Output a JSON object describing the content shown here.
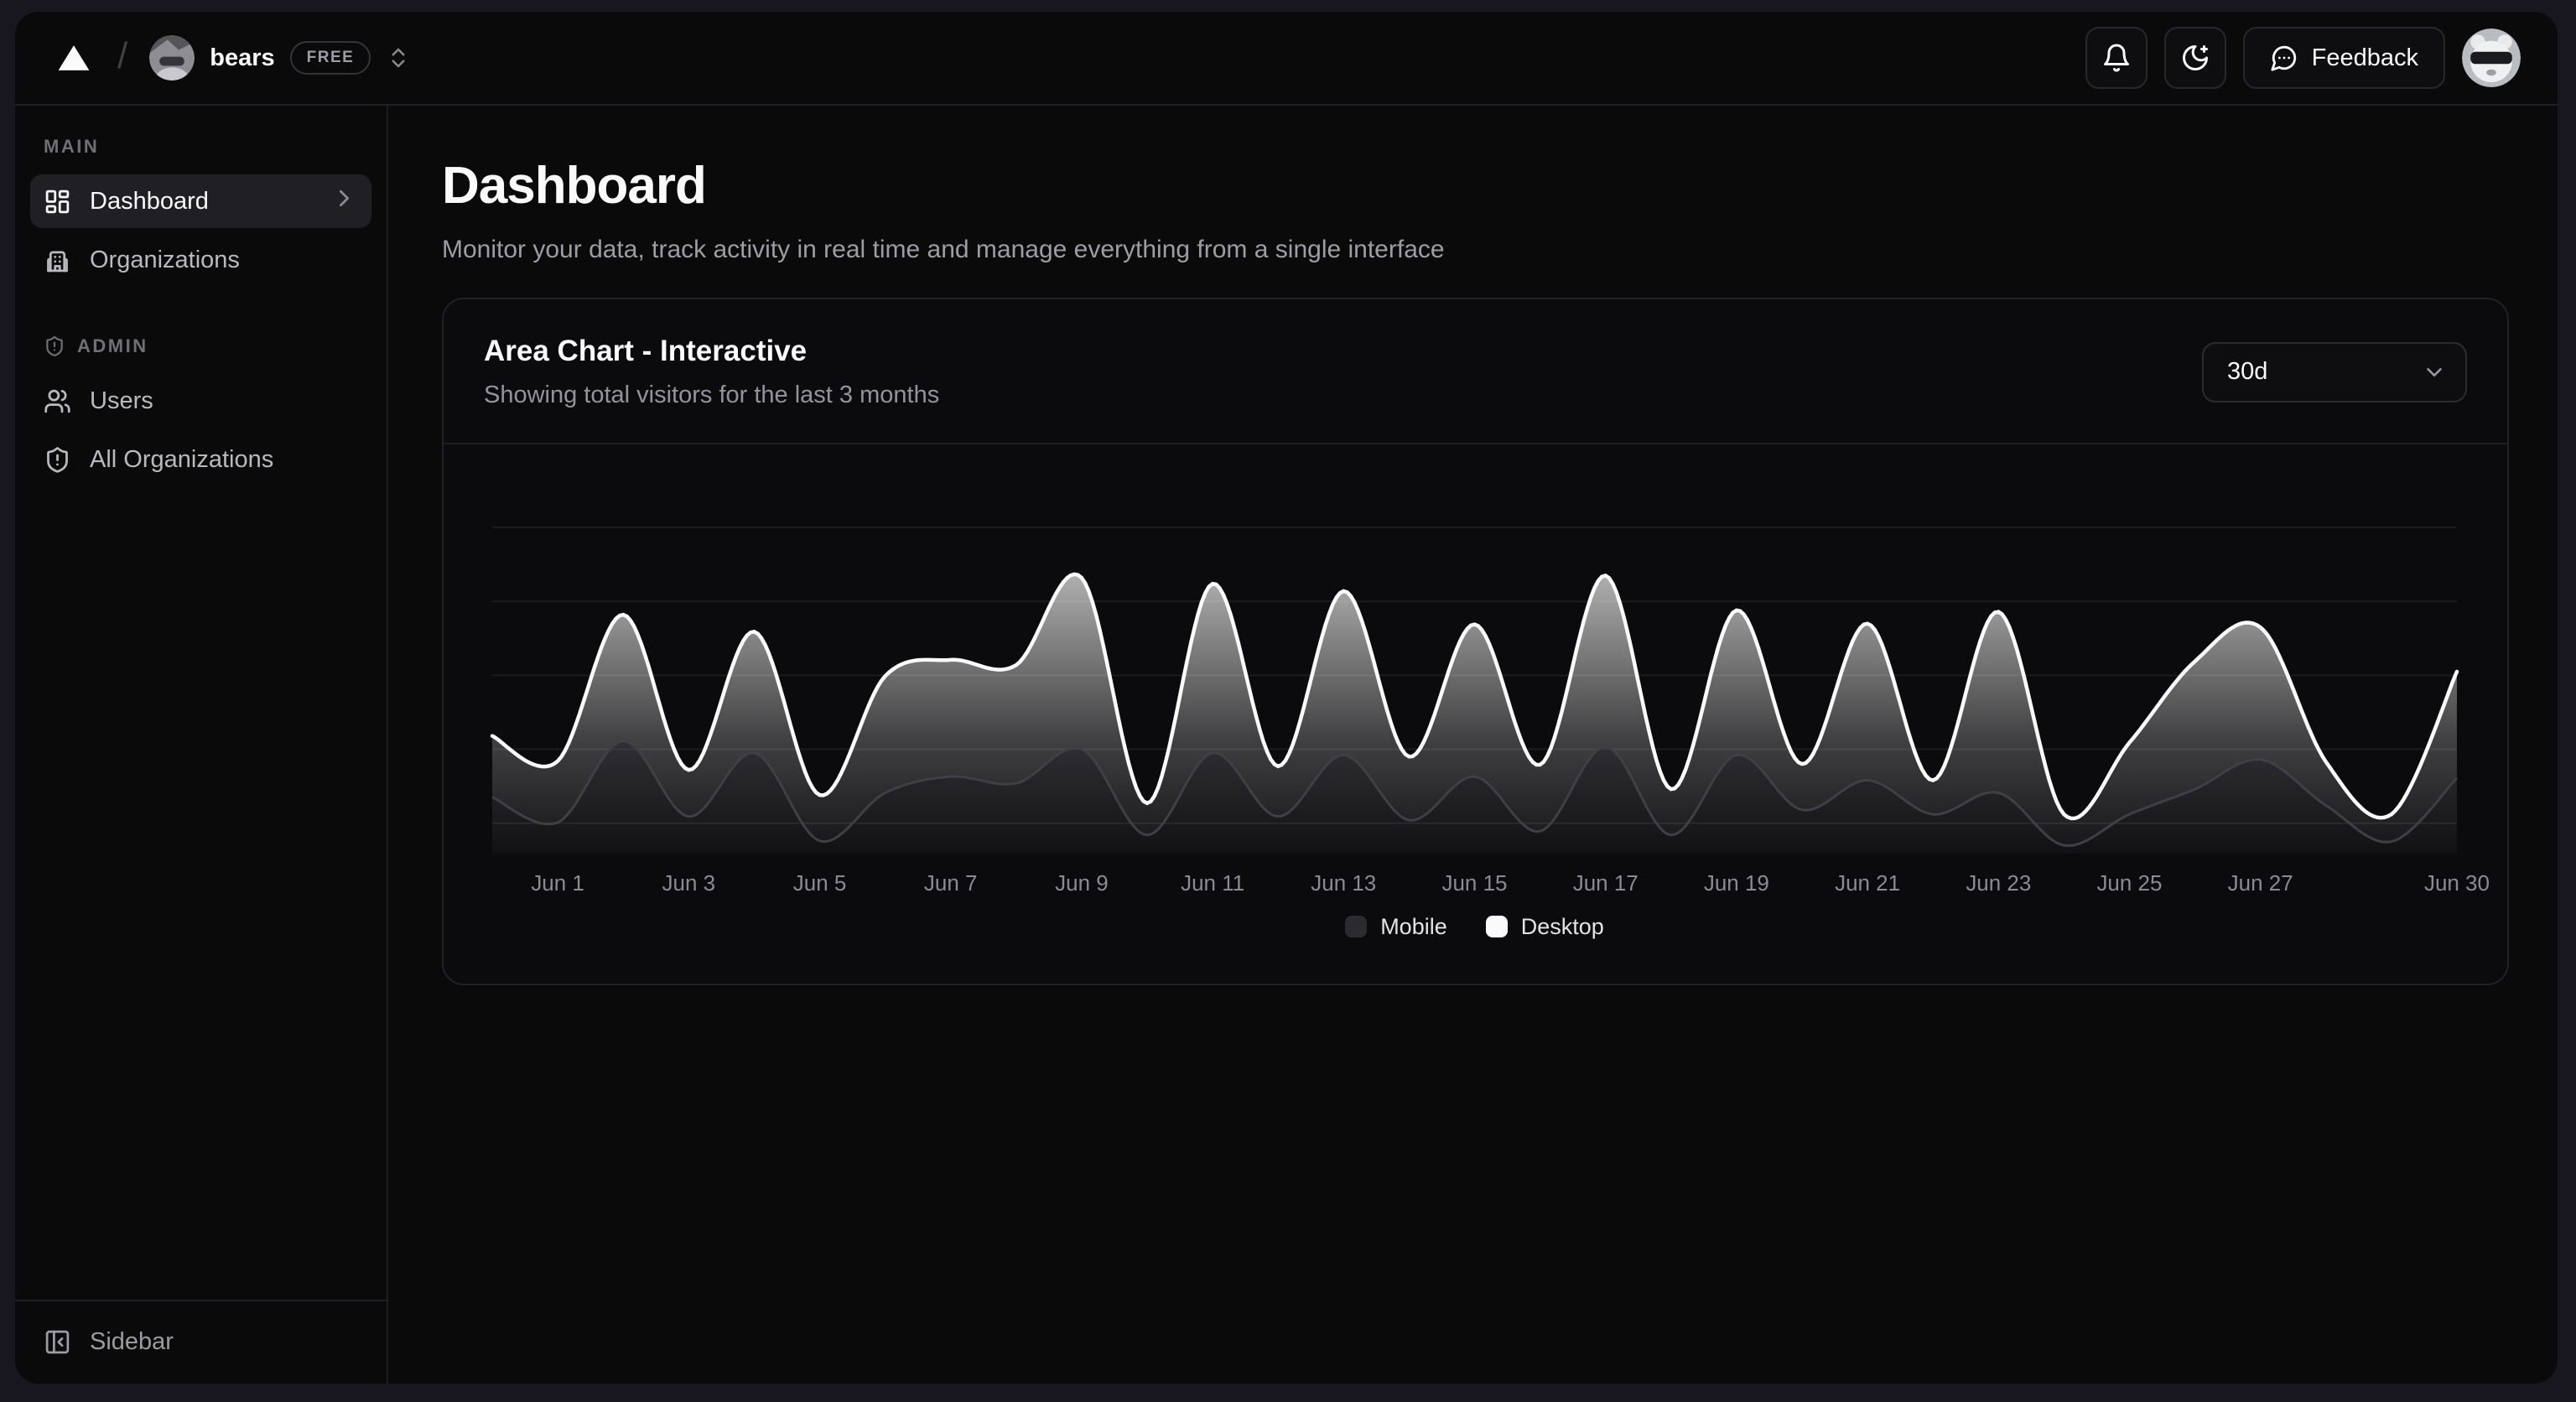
{
  "header": {
    "org_name": "bears",
    "plan_badge": "FREE",
    "feedback_label": "Feedback"
  },
  "sidebar": {
    "sections": [
      {
        "label": "MAIN",
        "items": [
          {
            "label": "Dashboard",
            "active": true
          },
          {
            "label": "Organizations",
            "active": false
          }
        ]
      },
      {
        "label": "ADMIN",
        "items": [
          {
            "label": "Users",
            "active": false
          },
          {
            "label": "All Organizations",
            "active": false
          }
        ]
      }
    ],
    "toggle_label": "Sidebar"
  },
  "page": {
    "title": "Dashboard",
    "subtitle": "Monitor your data, track activity in real time and manage everything from a single interface"
  },
  "card": {
    "title": "Area Chart - Interactive",
    "subtitle": "Showing total visitors for the last 3 months",
    "range_value": "30d"
  },
  "icons": {
    "logo": "vercel-triangle-logo",
    "breadcrumb_separator": "slash",
    "org_switcher": "chevrons-up-down-icon",
    "notifications": "bell-icon",
    "theme": "moon-star-icon",
    "feedback": "message-circle-icon",
    "dashboard": "layout-dashboard-icon",
    "organizations": "building-icon",
    "admin": "shield-alert-icon",
    "users": "users-icon",
    "all_organizations": "shield-alert-icon",
    "sidebar_toggle": "panel-left-close-icon",
    "select": "chevron-down-icon"
  },
  "colors": {
    "background": "#0a0a0a",
    "frame": "#18171f",
    "desktop_series": "#fafafa",
    "mobile_series": "#9ca3af",
    "grid": "rgba(255,255,255,0.07)",
    "tick_text": "#8b8b93"
  },
  "chart_data": {
    "type": "area",
    "stacked": true,
    "smooth": true,
    "title": "Area Chart - Interactive",
    "xlabel": "",
    "ylabel": "",
    "legend_position": "bottom",
    "grid": "horizontal",
    "ylim": [
      0,
      524
    ],
    "grid_values": [
      41,
      141,
      241,
      341,
      441
    ],
    "x": [
      "May 31",
      "Jun 1",
      "Jun 2",
      "Jun 3",
      "Jun 4",
      "Jun 5",
      "Jun 6",
      "Jun 7",
      "Jun 8",
      "Jun 9",
      "Jun 10",
      "Jun 11",
      "Jun 12",
      "Jun 13",
      "Jun 14",
      "Jun 15",
      "Jun 16",
      "Jun 17",
      "Jun 18",
      "Jun 19",
      "Jun 20",
      "Jun 21",
      "Jun 22",
      "Jun 23",
      "Jun 24",
      "Jun 25",
      "Jun 26",
      "Jun 27",
      "Jun 28",
      "Jun 29",
      "Jun 30"
    ],
    "tick_indices": [
      1,
      3,
      5,
      7,
      9,
      11,
      13,
      15,
      17,
      19,
      21,
      23,
      25,
      27,
      30
    ],
    "series": [
      {
        "name": "Mobile",
        "swatch": "#2b2b2f",
        "line_color": "#3f3f46",
        "values": [
          76,
          42,
          152,
          50,
          136,
          17,
          82,
          104,
          95,
          141,
          25,
          136,
          50,
          133,
          45,
          104,
          30,
          144,
          25,
          133,
          59,
          99,
          53,
          82,
          11,
          53,
          87,
          127,
          65,
          16,
          102
        ]
      },
      {
        "name": "Desktop",
        "swatch": "#fafafa",
        "line_color": "#fafafa",
        "values": [
          83,
          83,
          171,
          63,
          164,
          62,
          158,
          158,
          160,
          232,
          43,
          229,
          68,
          222,
          86,
          206,
          90,
          232,
          62,
          196,
          62,
          212,
          46,
          245,
          42,
          97,
          173,
          179,
          59,
          37,
          144
        ]
      }
    ]
  }
}
